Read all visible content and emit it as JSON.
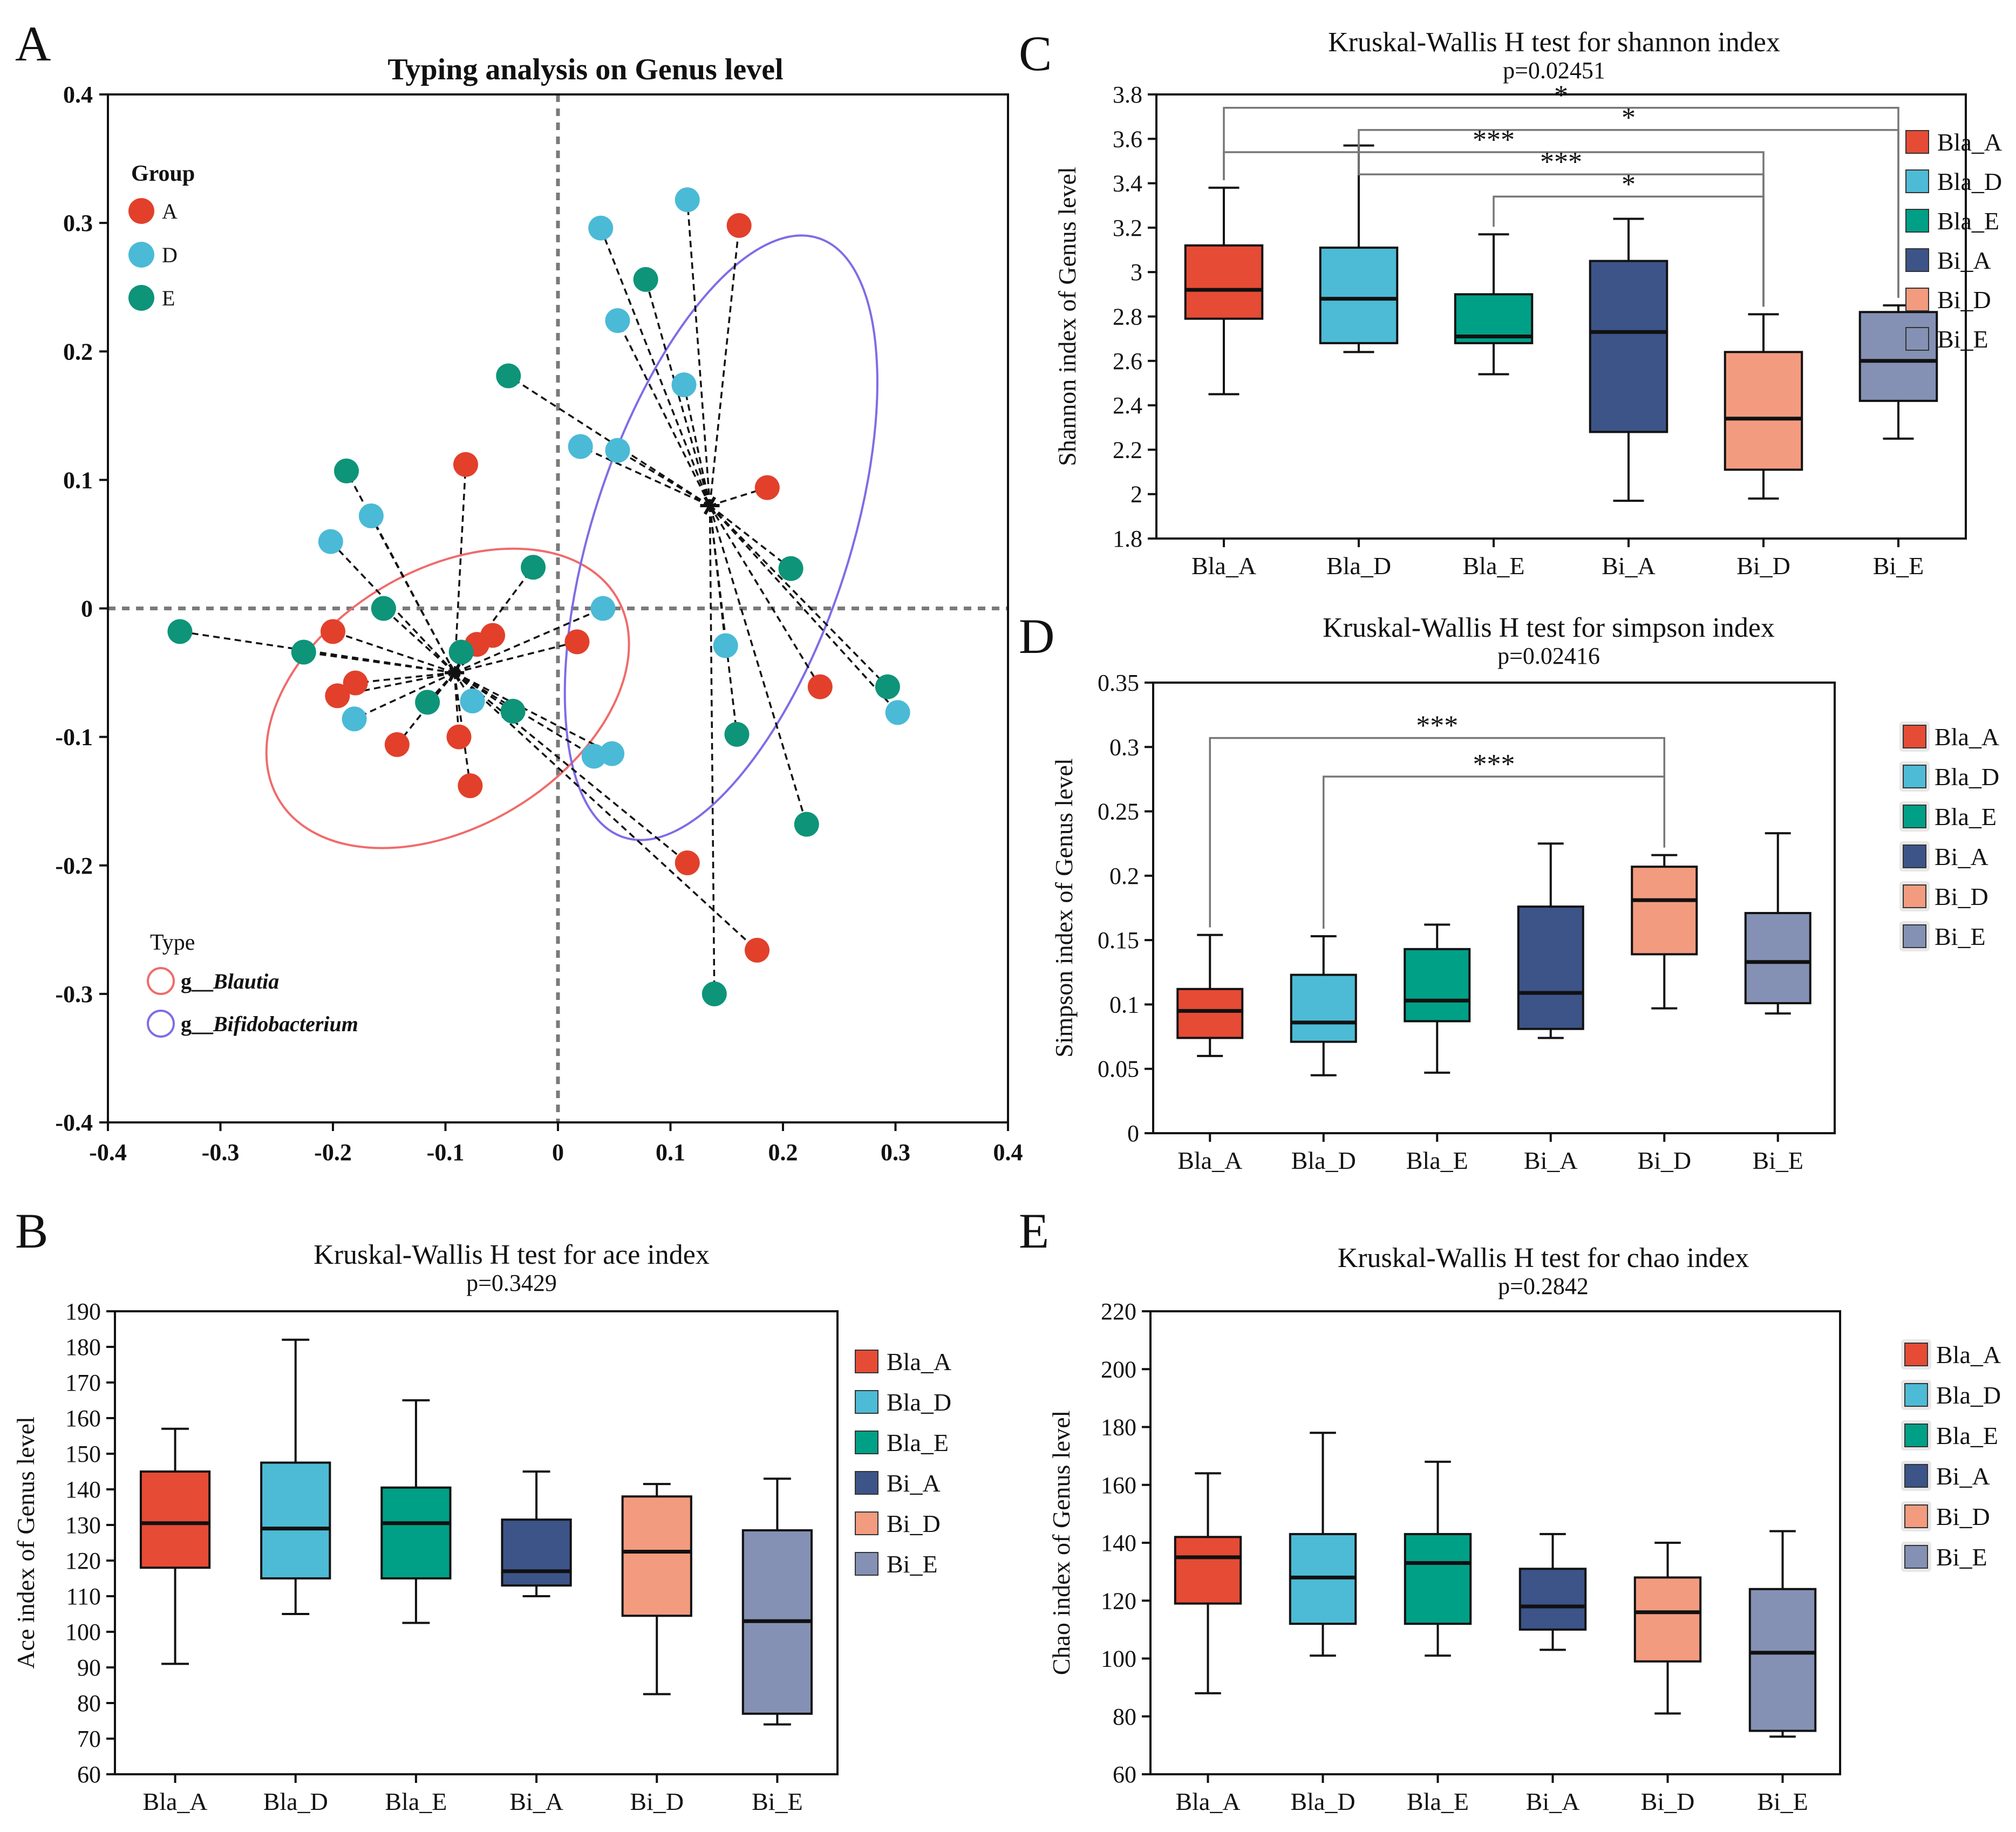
{
  "panel_labels": {
    "a": "A",
    "b": "B",
    "c": "C",
    "d": "D",
    "e": "E"
  },
  "scatter": {
    "title": "Typing analysis on Genus level",
    "x_ticks": [
      "-0.4",
      "-0.3",
      "-0.2",
      "-0.1",
      "0",
      "0.1",
      "0.2",
      "0.3",
      "0.4"
    ],
    "y_ticks": [
      "0.4",
      "0.3",
      "0.2",
      "0.1",
      "0",
      "-0.1",
      "-0.2",
      "-0.3",
      "-0.4"
    ],
    "group_title": "Group",
    "type_title": "Type",
    "type_prefix": "g__",
    "type_blautia": "Blautia",
    "type_bifido": "Bifidobacterium",
    "groups": [
      {
        "label": "A",
        "color": "#e2402b"
      },
      {
        "label": "D",
        "color": "#4bbad6"
      },
      {
        "label": "E",
        "color": "#0e9479"
      }
    ]
  },
  "box_labels": [
    "Bla_A",
    "Bla_D",
    "Bla_E",
    "Bi_A",
    "Bi_D",
    "Bi_E"
  ],
  "box_colors": [
    "#e64b35",
    "#4dbbd5",
    "#00a087",
    "#3c5488",
    "#f39b7f",
    "#8491b4"
  ],
  "chart_data": [
    {
      "id": "A",
      "type": "scatter",
      "title": "Typing analysis on Genus level",
      "xlim": [
        -0.4,
        0.4
      ],
      "ylim": [
        -0.4,
        0.4
      ],
      "centroids": {
        "Blautia": [
          -0.092,
          -0.05
        ],
        "Bifidobacterium": [
          0.135,
          0.08
        ]
      },
      "ellipses": [
        {
          "type": "Blautia",
          "center": [
            -0.098,
            -0.07
          ],
          "rx": 0.175,
          "ry": 0.1,
          "angle_deg": 31,
          "color": "#f06b6b"
        },
        {
          "type": "Bifidobacterium",
          "center": [
            0.145,
            0.055
          ],
          "rx": 0.28,
          "ry": 0.1,
          "angle_deg": 72,
          "color": "#7d6de6"
        }
      ],
      "points": [
        {
          "x": -0.082,
          "y": 0.112,
          "g": "A",
          "t": "Blautia"
        },
        {
          "x": -0.2,
          "y": -0.018,
          "g": "A",
          "t": "Blautia"
        },
        {
          "x": -0.18,
          "y": -0.058,
          "g": "A",
          "t": "Blautia"
        },
        {
          "x": -0.196,
          "y": -0.068,
          "g": "A",
          "t": "Blautia"
        },
        {
          "x": -0.143,
          "y": -0.106,
          "g": "A",
          "t": "Blautia"
        },
        {
          "x": -0.088,
          "y": -0.1,
          "g": "A",
          "t": "Blautia"
        },
        {
          "x": -0.078,
          "y": -0.138,
          "g": "A",
          "t": "Blautia"
        },
        {
          "x": -0.058,
          "y": -0.021,
          "g": "A",
          "t": "Blautia"
        },
        {
          "x": -0.072,
          "y": -0.028,
          "g": "A",
          "t": "Blautia"
        },
        {
          "x": 0.017,
          "y": -0.026,
          "g": "A",
          "t": "Blautia"
        },
        {
          "x": 0.115,
          "y": -0.198,
          "g": "A",
          "t": "Blautia"
        },
        {
          "x": 0.177,
          "y": -0.266,
          "g": "A",
          "t": "Blautia"
        },
        {
          "x": 0.161,
          "y": 0.298,
          "g": "A",
          "t": "Bifidobacterium"
        },
        {
          "x": 0.186,
          "y": 0.094,
          "g": "A",
          "t": "Bifidobacterium"
        },
        {
          "x": 0.233,
          "y": -0.061,
          "g": "A",
          "t": "Bifidobacterium"
        },
        {
          "x": -0.202,
          "y": 0.052,
          "g": "D",
          "t": "Blautia"
        },
        {
          "x": -0.166,
          "y": 0.072,
          "g": "D",
          "t": "Blautia"
        },
        {
          "x": -0.181,
          "y": -0.086,
          "g": "D",
          "t": "Blautia"
        },
        {
          "x": -0.076,
          "y": -0.072,
          "g": "D",
          "t": "Blautia"
        },
        {
          "x": 0.04,
          "y": 0.0,
          "g": "D",
          "t": "Blautia"
        },
        {
          "x": 0.032,
          "y": -0.115,
          "g": "D",
          "t": "Blautia"
        },
        {
          "x": 0.048,
          "y": -0.113,
          "g": "D",
          "t": "Blautia"
        },
        {
          "x": 0.115,
          "y": 0.318,
          "g": "D",
          "t": "Bifidobacterium"
        },
        {
          "x": 0.038,
          "y": 0.296,
          "g": "D",
          "t": "Bifidobacterium"
        },
        {
          "x": 0.053,
          "y": 0.224,
          "g": "D",
          "t": "Bifidobacterium"
        },
        {
          "x": 0.112,
          "y": 0.174,
          "g": "D",
          "t": "Bifidobacterium"
        },
        {
          "x": 0.02,
          "y": 0.126,
          "g": "D",
          "t": "Bifidobacterium"
        },
        {
          "x": 0.053,
          "y": 0.123,
          "g": "D",
          "t": "Bifidobacterium"
        },
        {
          "x": 0.149,
          "y": -0.029,
          "g": "D",
          "t": "Bifidobacterium"
        },
        {
          "x": 0.302,
          "y": -0.081,
          "g": "D",
          "t": "Bifidobacterium"
        },
        {
          "x": -0.188,
          "y": 0.107,
          "g": "E",
          "t": "Blautia"
        },
        {
          "x": -0.155,
          "y": 0.0,
          "g": "E",
          "t": "Blautia"
        },
        {
          "x": -0.336,
          "y": -0.018,
          "g": "E",
          "t": "Blautia"
        },
        {
          "x": -0.226,
          "y": -0.034,
          "g": "E",
          "t": "Blautia"
        },
        {
          "x": -0.116,
          "y": -0.073,
          "g": "E",
          "t": "Blautia"
        },
        {
          "x": -0.086,
          "y": -0.034,
          "g": "E",
          "t": "Blautia"
        },
        {
          "x": -0.04,
          "y": -0.08,
          "g": "E",
          "t": "Blautia"
        },
        {
          "x": -0.022,
          "y": 0.032,
          "g": "E",
          "t": "Blautia"
        },
        {
          "x": -0.044,
          "y": 0.181,
          "g": "E",
          "t": "Bifidobacterium"
        },
        {
          "x": 0.078,
          "y": 0.256,
          "g": "E",
          "t": "Bifidobacterium"
        },
        {
          "x": 0.207,
          "y": 0.031,
          "g": "E",
          "t": "Bifidobacterium"
        },
        {
          "x": 0.293,
          "y": -0.061,
          "g": "E",
          "t": "Bifidobacterium"
        },
        {
          "x": 0.159,
          "y": -0.098,
          "g": "E",
          "t": "Bifidobacterium"
        },
        {
          "x": 0.221,
          "y": -0.168,
          "g": "E",
          "t": "Bifidobacterium"
        },
        {
          "x": 0.139,
          "y": -0.3,
          "g": "E",
          "t": "Bifidobacterium"
        }
      ]
    },
    {
      "id": "B",
      "type": "boxplot",
      "title": "Kruskal-Wallis H test for ace index",
      "subtitle": "p=0.3429",
      "ylabel": "Ace index of Genus level",
      "ylim": [
        60,
        190
      ],
      "yticks": [
        60,
        70,
        80,
        90,
        100,
        110,
        120,
        130,
        140,
        150,
        160,
        170,
        180,
        190
      ],
      "categories": [
        "Bla_A",
        "Bla_D",
        "Bla_E",
        "Bi_A",
        "Bi_D",
        "Bi_E"
      ],
      "boxes": [
        {
          "min": 91,
          "q1": 118,
          "median": 130.5,
          "q3": 145,
          "max": 157
        },
        {
          "min": 105,
          "q1": 115,
          "median": 129,
          "q3": 147.5,
          "max": 182
        },
        {
          "min": 102.5,
          "q1": 115,
          "median": 130.5,
          "q3": 140.5,
          "max": 165
        },
        {
          "min": 110,
          "q1": 113,
          "median": 117,
          "q3": 131.5,
          "max": 145
        },
        {
          "min": 82.5,
          "q1": 104.5,
          "median": 122.5,
          "q3": 138,
          "max": 141.5
        },
        {
          "min": 74,
          "q1": 77,
          "median": 103,
          "q3": 128.5,
          "max": 143
        }
      ],
      "significance": []
    },
    {
      "id": "C",
      "type": "boxplot",
      "title": "Kruskal-Wallis H test for shannon index",
      "subtitle": "p=0.02451",
      "ylabel": "Shannon index of Genus level",
      "ylim": [
        1.8,
        3.8
      ],
      "yticks": [
        1.8,
        2,
        2.2,
        2.4,
        2.6,
        2.8,
        3,
        3.2,
        3.4,
        3.6,
        3.8
      ],
      "tick_labels": [
        "1.8",
        "2",
        "2.2",
        "2.4",
        "2.6",
        "2.8",
        "3",
        "3.2",
        "3.4",
        "3.6",
        "3.8"
      ],
      "categories": [
        "Bla_A",
        "Bla_D",
        "Bla_E",
        "Bi_A",
        "Bi_D",
        "Bi_E"
      ],
      "boxes": [
        {
          "min": 2.45,
          "q1": 2.79,
          "median": 2.92,
          "q3": 3.12,
          "max": 3.38
        },
        {
          "min": 2.64,
          "q1": 2.68,
          "median": 2.88,
          "q3": 3.11,
          "max": 3.57
        },
        {
          "min": 2.54,
          "q1": 2.68,
          "median": 2.71,
          "q3": 2.9,
          "max": 3.17
        },
        {
          "min": 1.97,
          "q1": 2.28,
          "median": 2.73,
          "q3": 3.05,
          "max": 3.24
        },
        {
          "min": 1.98,
          "q1": 2.11,
          "median": 2.34,
          "q3": 2.64,
          "max": 2.81
        },
        {
          "min": 2.25,
          "q1": 2.42,
          "median": 2.6,
          "q3": 2.82,
          "max": 2.85
        }
      ],
      "significance": [
        {
          "from": 0,
          "to": 5,
          "label": "*",
          "level": 3.74
        },
        {
          "from": 1,
          "to": 5,
          "label": "*",
          "level": 3.64
        },
        {
          "from": 0,
          "to": 4,
          "label": "***",
          "level": 3.54
        },
        {
          "from": 1,
          "to": 4,
          "label": "***",
          "level": 3.44
        },
        {
          "from": 2,
          "to": 4,
          "label": "*",
          "level": 3.34
        }
      ]
    },
    {
      "id": "D",
      "type": "boxplot",
      "title": "Kruskal-Wallis H test for simpson index",
      "subtitle": "p=0.02416",
      "ylabel": "Simpson index of Genus level",
      "ylim": [
        0,
        0.35
      ],
      "yticks": [
        0,
        0.05,
        0.1,
        0.15,
        0.2,
        0.25,
        0.3,
        0.35
      ],
      "tick_labels": [
        "0",
        "0.05",
        "0.1",
        "0.15",
        "0.2",
        "0.25",
        "0.3",
        "0.35"
      ],
      "categories": [
        "Bla_A",
        "Bla_D",
        "Bla_E",
        "Bi_A",
        "Bi_D",
        "Bi_E"
      ],
      "boxes": [
        {
          "min": 0.06,
          "q1": 0.074,
          "median": 0.095,
          "q3": 0.112,
          "max": 0.154
        },
        {
          "min": 0.045,
          "q1": 0.071,
          "median": 0.086,
          "q3": 0.123,
          "max": 0.153
        },
        {
          "min": 0.047,
          "q1": 0.087,
          "median": 0.103,
          "q3": 0.143,
          "max": 0.162
        },
        {
          "min": 0.074,
          "q1": 0.081,
          "median": 0.109,
          "q3": 0.176,
          "max": 0.225
        },
        {
          "min": 0.097,
          "q1": 0.139,
          "median": 0.181,
          "q3": 0.207,
          "max": 0.216
        },
        {
          "min": 0.093,
          "q1": 0.101,
          "median": 0.133,
          "q3": 0.171,
          "max": 0.233
        }
      ],
      "significance": [
        {
          "from": 0,
          "to": 4,
          "label": "***",
          "level": 0.307
        },
        {
          "from": 1,
          "to": 4,
          "label": "***",
          "level": 0.277
        }
      ]
    },
    {
      "id": "E",
      "type": "boxplot",
      "title": "Kruskal-Wallis H test for chao index",
      "subtitle": "p=0.2842",
      "ylabel": "Chao index of Genus level",
      "ylim": [
        60,
        220
      ],
      "yticks": [
        60,
        80,
        100,
        120,
        140,
        160,
        180,
        200,
        220
      ],
      "categories": [
        "Bla_A",
        "Bla_D",
        "Bla_E",
        "Bi_A",
        "Bi_D",
        "Bi_E"
      ],
      "boxes": [
        {
          "min": 88,
          "q1": 119,
          "median": 135,
          "q3": 142,
          "max": 164
        },
        {
          "min": 101,
          "q1": 112,
          "median": 128,
          "q3": 143,
          "max": 178
        },
        {
          "min": 101,
          "q1": 112,
          "median": 133,
          "q3": 143,
          "max": 168
        },
        {
          "min": 103,
          "q1": 110,
          "median": 118,
          "q3": 131,
          "max": 143
        },
        {
          "min": 81,
          "q1": 99,
          "median": 116,
          "q3": 128,
          "max": 140
        },
        {
          "min": 73,
          "q1": 75,
          "median": 102,
          "q3": 124,
          "max": 144
        }
      ],
      "significance": []
    }
  ]
}
